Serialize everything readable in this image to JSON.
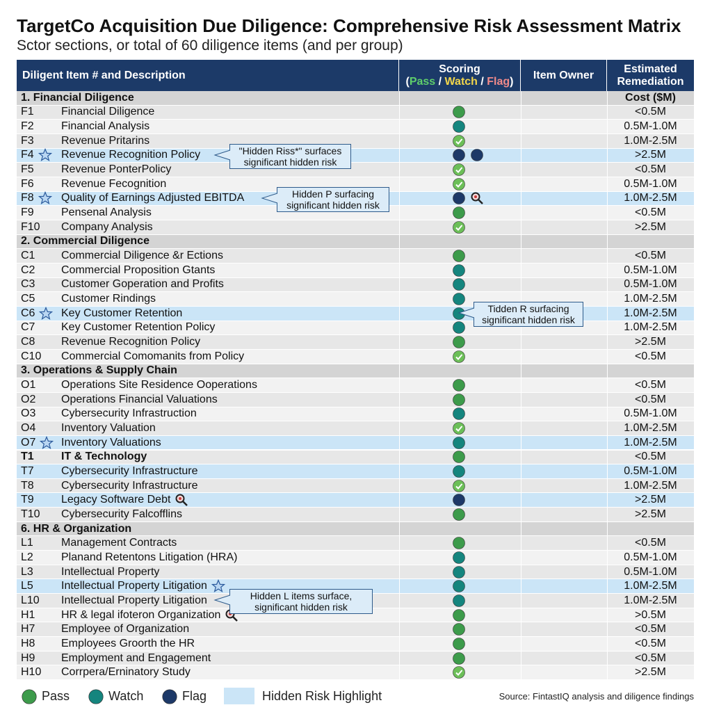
{
  "header": {
    "title": "TargetCo Acquisition Due Diligence: Comprehensive Risk Assessment Matrix",
    "subtitle": "Sctor sections, or total of 60 diligence items (and per group)"
  },
  "table": {
    "columns": {
      "item": "Diligent Item # and Description",
      "scoring": "Scoring",
      "scoring_parts": [
        "(",
        "Pass",
        " / ",
        "Watch",
        " / ",
        "Flag",
        ")"
      ],
      "owner": "Item Owner",
      "cost": "Estimated Remediation"
    },
    "rows": [
      {
        "section": "1. Financial Diligence",
        "cost": "Cost ($M)"
      },
      {
        "id": "F1",
        "desc": "Financial Diligence",
        "status": "pass",
        "cost": "<0.5M"
      },
      {
        "id": "F2",
        "desc": "Financial Analysis",
        "status": "watch",
        "cost": "0.5M-1.0M"
      },
      {
        "id": "F3",
        "desc": "Revenue Pritarins",
        "status": "check",
        "cost": "1.0M-2.5M"
      },
      {
        "id": "F4",
        "id_icon": "star",
        "desc": "Revenue Recognition Policy",
        "status": "flag",
        "score_icon": "flag",
        "cost": ">2.5M",
        "highlight": true,
        "callout": "\"Hidden Riss*\" surfaces significant hidden risk"
      },
      {
        "id": "F5",
        "desc": "Revenue PonterPolicy",
        "status": "check",
        "cost": "<0.5M"
      },
      {
        "id": "F6",
        "desc": "Revenue Fecognition",
        "status": "check",
        "cost": "0.5M-1.0M"
      },
      {
        "id": "F8",
        "id_icon": "star",
        "desc": "Quality of Earnings Adjusted EBITDA",
        "status": "flag",
        "score_icon": "magnifier",
        "cost": "1.0M-2.5M",
        "highlight": true,
        "callout": "Hidden P surfacing significant hidden risk"
      },
      {
        "id": "F9",
        "desc": "Pensenal Analysis",
        "status": "pass",
        "cost": "<0.5M"
      },
      {
        "id": "F10",
        "desc": "Company Analysis",
        "status": "check",
        "cost": ">2.5M"
      },
      {
        "section": "2. Commercial Diligence"
      },
      {
        "id": "C1",
        "desc": "Commercial Diligence &r Ections",
        "status": "pass",
        "cost": "<0.5M"
      },
      {
        "id": "C2",
        "desc": "Commercial Proposition Gtants",
        "status": "watch",
        "cost": "0.5M-1.0M"
      },
      {
        "id": "C3",
        "desc": "Customer Goperation and Profits",
        "status": "watch",
        "cost": "0.5M-1.0M"
      },
      {
        "id": "C5",
        "desc": "Customer Rindings",
        "status": "watch",
        "cost": "1.0M-2.5M"
      },
      {
        "id": "C6",
        "id_icon": "star",
        "desc": "Key Customer Retention",
        "status": "watch",
        "cost": "1.0M-2.5M",
        "highlight": true,
        "callout": "Tidden R surfacing significant hidden risk"
      },
      {
        "id": "C7",
        "desc": "Key Customer Retention Policy",
        "status": "watch",
        "cost": "1.0M-2.5M"
      },
      {
        "id": "C8",
        "desc": "Revenue Recognition Policy",
        "status": "pass",
        "cost": ">2.5M"
      },
      {
        "id": "C10",
        "desc": "Commercial Comomanits from Policy",
        "status": "check",
        "cost": "<0.5M"
      },
      {
        "section": "3. Operations & Supply Chain"
      },
      {
        "id": "O1",
        "desc": "Operations Site Residence Ooperations",
        "status": "pass",
        "cost": "<0.5M"
      },
      {
        "id": "O2",
        "desc": "Operations Financial Valuations",
        "status": "pass",
        "cost": "<0.5M"
      },
      {
        "id": "O3",
        "desc": "Cybersecurity Infrastruction",
        "status": "watch",
        "cost": "0.5M-1.0M"
      },
      {
        "id": "O4",
        "desc": "Inventory Valuation",
        "status": "check",
        "cost": "1.0M-2.5M"
      },
      {
        "id": "O7",
        "id_icon": "star",
        "desc": "Inventory Valuations",
        "status": "watch",
        "cost": "1.0M-2.5M",
        "highlight": true
      },
      {
        "id": "T1",
        "desc": "IT & Technology",
        "status": "pass",
        "cost": "<0.5M",
        "bold": true
      },
      {
        "id": "T7",
        "desc": "Cybersecurity Infrastructure",
        "status": "watch",
        "cost": "0.5M-1.0M",
        "highlight": true
      },
      {
        "id": "T8",
        "desc": "Cybersecurity Infrastructure",
        "status": "check",
        "cost": "1.0M-2.5M"
      },
      {
        "id": "T9",
        "desc": "Legacy Software Debt",
        "desc_icon": "magnifier",
        "status": "flag",
        "cost": ">2.5M",
        "highlight": true
      },
      {
        "id": "T10",
        "desc": "Cybersecurity Falcofflins",
        "status": "pass",
        "cost": ">2.5M"
      },
      {
        "section": "6. HR & Organization"
      },
      {
        "id": "L1",
        "desc": "Management Contracts",
        "status": "pass",
        "cost": "<0.5M"
      },
      {
        "id": "L2",
        "desc": "Planand Retentons Litigation (HRA)",
        "status": "watch",
        "cost": "0.5M-1.0M"
      },
      {
        "id": "L3",
        "desc": "Intellectual Property",
        "status": "watch",
        "cost": "0.5M-1.0M"
      },
      {
        "id": "L5",
        "desc": "Intellectual Property Litigation",
        "desc_icon": "star",
        "status": "watch",
        "cost": "1.0M-2.5M",
        "highlight": true
      },
      {
        "id": "L10",
        "desc": "Intellectual Property Litigation",
        "status": "watch",
        "cost": "1.0M-2.5M",
        "callout": "Hidden L items surface, significant hidden risk"
      },
      {
        "id": "H1",
        "desc": "HR & legal ifoteron Organization",
        "desc_icon": "magnifier",
        "status": "pass",
        "cost": ">0.5M"
      },
      {
        "id": "H7",
        "desc": "Employee of Organization",
        "status": "pass",
        "cost": "<0.5M"
      },
      {
        "id": "H8",
        "desc": "Employees Groorth the HR",
        "status": "pass",
        "cost": "<0.5M"
      },
      {
        "id": "H9",
        "desc": "Employment and Engagement",
        "status": "pass",
        "cost": "<0.5M"
      },
      {
        "id": "H10",
        "desc": "Corrpera/Erninatory Study",
        "status": "check",
        "cost": ">2.5M"
      }
    ]
  },
  "legend": [
    {
      "label": "Pass",
      "status": "pass"
    },
    {
      "label": "Watch",
      "status": "watch"
    },
    {
      "label": "Flag",
      "status": "flag"
    },
    {
      "label": "Hidden Risk Highlight",
      "status": "highlight"
    }
  ],
  "source": "Source: FintastIQ analysis and diligence findings"
}
